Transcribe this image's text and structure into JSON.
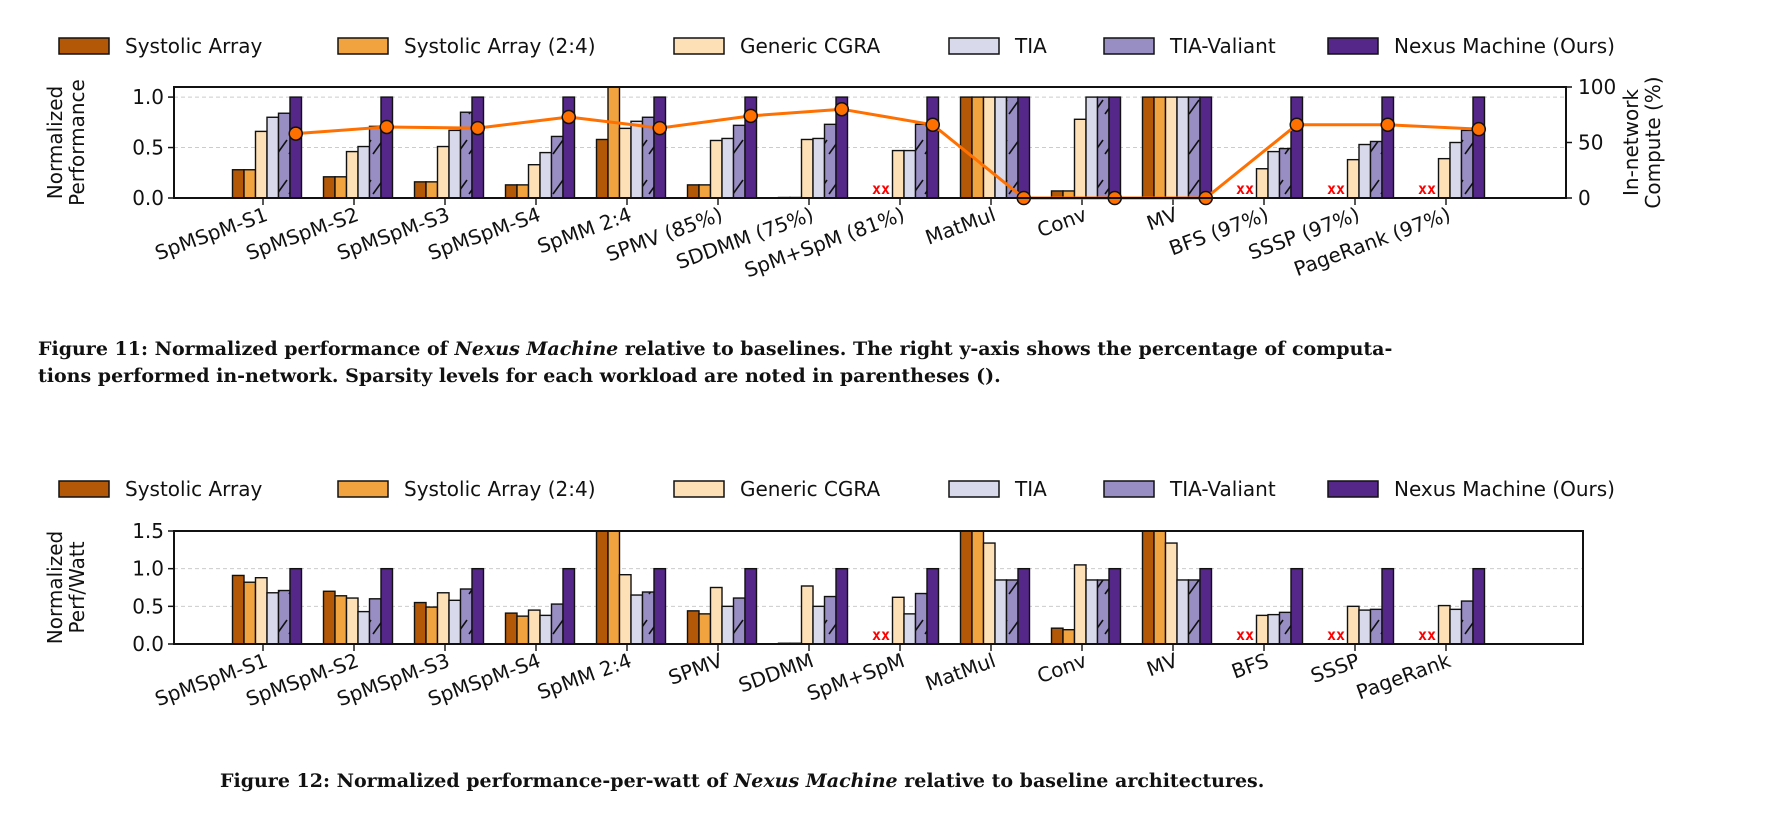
{
  "colors": {
    "Systolic Array": "#b35806",
    "Systolic Array (2:4)": "#f1a340",
    "Generic CGRA": "#fee0b6",
    "TIA": "#d8daeb",
    "TIA-Valiant": "#998ec3",
    "Nexus Machine (Ours)": "#542788",
    "line": "#ff7000",
    "missing": "#ff0000"
  },
  "missing_marker": "xx",
  "chart_data": [
    {
      "type": "bar",
      "title": "",
      "ylabel": "Normalized Performance",
      "y2label": "In-network Compute (%)",
      "ylim": [
        0,
        1.1
      ],
      "y2lim": [
        0,
        100
      ],
      "yticks": [
        "0.0",
        "0.5",
        "1.0"
      ],
      "y2ticks": [
        "0",
        "50",
        "100"
      ],
      "grid": true,
      "legend_position": "top",
      "categories": [
        "SpMSpM-S1",
        "SpMSpM-S2",
        "SpMSpM-S3",
        "SpMSpM-S4",
        "SpMM 2:4",
        "SPMV (85%)",
        "SDDMM (75%)",
        "SpM+SpM (81%)",
        "MatMul",
        "Conv",
        "MV",
        "BFS (97%)",
        "SSSP (97%)",
        "PageRank (97%)"
      ],
      "series": [
        {
          "name": "Systolic Array",
          "hatch": false,
          "values": [
            0.28,
            0.21,
            0.16,
            0.13,
            0.58,
            0.13,
            0.005,
            null,
            1.0,
            0.07,
            1.0,
            null,
            null,
            null
          ]
        },
        {
          "name": "Systolic Array (2:4)",
          "hatch": false,
          "values": [
            0.28,
            0.21,
            0.16,
            0.13,
            1.1,
            0.13,
            0.005,
            null,
            1.0,
            0.07,
            1.0,
            null,
            null,
            null
          ]
        },
        {
          "name": "Generic CGRA",
          "hatch": false,
          "values": [
            0.66,
            0.46,
            0.51,
            0.33,
            0.69,
            0.57,
            0.58,
            0.47,
            1.0,
            0.78,
            1.0,
            0.29,
            0.38,
            0.39
          ]
        },
        {
          "name": "TIA",
          "hatch": false,
          "values": [
            0.8,
            0.51,
            0.67,
            0.45,
            0.76,
            0.59,
            0.59,
            0.47,
            1.0,
            1.0,
            1.0,
            0.46,
            0.53,
            0.55
          ]
        },
        {
          "name": "TIA-Valiant",
          "hatch": true,
          "values": [
            0.84,
            0.71,
            0.85,
            0.61,
            0.8,
            0.72,
            0.73,
            0.73,
            1.0,
            1.0,
            1.0,
            0.49,
            0.56,
            0.67
          ]
        },
        {
          "name": "Nexus Machine (Ours)",
          "hatch": false,
          "values": [
            1,
            1,
            1,
            1,
            1,
            1,
            1,
            1,
            1,
            1,
            1,
            1,
            1,
            1
          ]
        }
      ],
      "line_series": {
        "name": "In-network Compute (%)",
        "axis": "right",
        "values": [
          58,
          64,
          63,
          73,
          63,
          74,
          80,
          66,
          0,
          0,
          0,
          66,
          66,
          62
        ]
      },
      "caption": {
        "prefix": "Figure 11: Normalized performance of ",
        "italic": "Nexus Machine",
        "suffix": " relative to baselines. The right y-axis shows the percentage of computa-",
        "line2": "tions performed in-network. Sparsity levels for each workload are noted in parentheses ()."
      }
    },
    {
      "type": "bar",
      "title": "",
      "ylabel": "Normalized Perf/Watt",
      "ylim": [
        0,
        1.5
      ],
      "yticks": [
        "0.0",
        "0.5",
        "1.0",
        "1.5"
      ],
      "grid": true,
      "legend_position": "top",
      "categories": [
        "SpMSpM-S1",
        "SpMSpM-S2",
        "SpMSpM-S3",
        "SpMSpM-S4",
        "SpMM 2:4",
        "SPMV",
        "SDDMM",
        "SpM+SpM",
        "MatMul",
        "Conv",
        "MV",
        "BFS",
        "SSSP",
        "PageRank"
      ],
      "series": [
        {
          "name": "Systolic Array",
          "hatch": false,
          "values": [
            0.91,
            0.7,
            0.55,
            0.41,
            1.5,
            0.44,
            0.01,
            null,
            1.5,
            0.21,
            1.5,
            null,
            null,
            null
          ]
        },
        {
          "name": "Systolic Array (2:4)",
          "hatch": false,
          "values": [
            0.82,
            0.64,
            0.49,
            0.37,
            1.5,
            0.4,
            0.01,
            null,
            1.5,
            0.19,
            1.5,
            null,
            null,
            null
          ]
        },
        {
          "name": "Generic CGRA",
          "hatch": false,
          "values": [
            0.88,
            0.61,
            0.68,
            0.45,
            0.92,
            0.75,
            0.77,
            0.62,
            1.34,
            1.05,
            1.34,
            0.38,
            0.5,
            0.51
          ]
        },
        {
          "name": "TIA",
          "hatch": false,
          "values": [
            0.68,
            0.43,
            0.58,
            0.38,
            0.65,
            0.5,
            0.5,
            0.4,
            0.85,
            0.85,
            0.85,
            0.39,
            0.45,
            0.46
          ]
        },
        {
          "name": "TIA-Valiant",
          "hatch": true,
          "values": [
            0.71,
            0.6,
            0.73,
            0.53,
            0.69,
            0.61,
            0.63,
            0.67,
            0.85,
            0.85,
            0.85,
            0.42,
            0.46,
            0.57
          ]
        },
        {
          "name": "Nexus Machine (Ours)",
          "hatch": false,
          "values": [
            1,
            1,
            1,
            1,
            1,
            1,
            1,
            1,
            1,
            1,
            1,
            1,
            1,
            1
          ]
        }
      ],
      "caption": {
        "prefix": "Figure 12: Normalized performance-per-watt of ",
        "italic": "Nexus Machine",
        "suffix": " relative to baseline architectures."
      }
    }
  ]
}
